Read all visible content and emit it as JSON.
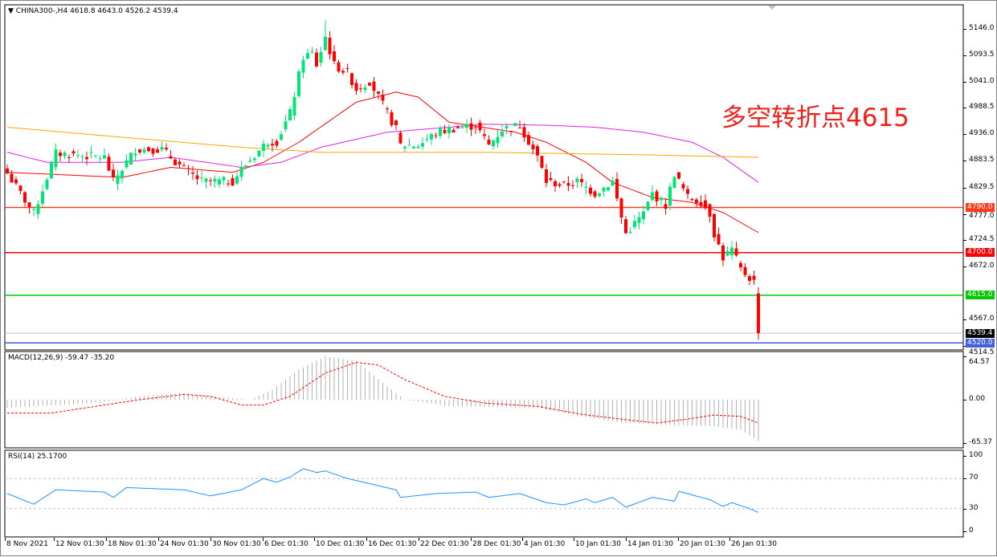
{
  "header": {
    "symbol": "CHINA300-,H4",
    "ohlc": "4618.8 4643.0 4526.2 4539.4"
  },
  "annotation": "多空转折点4615",
  "colors": {
    "bull": "#00e676",
    "bear": "#ff0000",
    "ma_fast": "#ff0000",
    "ma_mid": "#e020e0",
    "ma_slow": "#ffa500",
    "macd_hist": "#b0b0b0",
    "macd_signal": "#ff0000",
    "rsi": "#1e90ff"
  },
  "chart_data": [
    {
      "type": "candlestick",
      "pane": "price",
      "candle_count": 171,
      "price_range": [
        4514.5,
        5160
      ],
      "y_ticks": [
        "5146.0",
        "5093.5",
        "5041.0",
        "4988.5",
        "4936.0",
        "4883.5",
        "4829.5",
        "4777.0",
        "4724.5",
        "4672.0",
        "4567.0",
        "4514.5"
      ],
      "x_ticks": [
        "8 Nov 2021",
        "12 Nov 01:30",
        "18 Nov 01:30",
        "24 Nov 01:30",
        "30 Nov 01:30",
        "6 Dec 01:30",
        "10 Dec 01:30",
        "16 Dec 01:30",
        "22 Dec 01:30",
        "28 Dec 01:30",
        "4 Jan 01:30",
        "10 Jan 01:30",
        "14 Jan 01:30",
        "20 Jan 01:30",
        "26 Jan 01:30"
      ],
      "close_path": [
        [
          0,
          4858
        ],
        [
          6,
          4778
        ],
        [
          11,
          4898
        ],
        [
          22,
          4890
        ],
        [
          24,
          4842
        ],
        [
          29,
          4906
        ],
        [
          35,
          4906
        ],
        [
          40,
          4866
        ],
        [
          44,
          4842
        ],
        [
          51,
          4842
        ],
        [
          53,
          4866
        ],
        [
          59,
          4922
        ],
        [
          61,
          4922
        ],
        [
          64,
          4978
        ],
        [
          67,
          5090
        ],
        [
          69,
          5098
        ],
        [
          70,
          5074
        ],
        [
          72,
          5130
        ],
        [
          74,
          5074
        ],
        [
          77,
          5058
        ],
        [
          79,
          5026
        ],
        [
          82,
          5042
        ],
        [
          85,
          4994
        ],
        [
          88,
          4946
        ],
        [
          89,
          4914
        ],
        [
          93,
          4914
        ],
        [
          97,
          4938
        ],
        [
          100,
          4946
        ],
        [
          106,
          4954
        ],
        [
          109,
          4914
        ],
        [
          112,
          4946
        ],
        [
          116,
          4954
        ],
        [
          119,
          4906
        ],
        [
          120,
          4890
        ],
        [
          122,
          4842
        ],
        [
          126,
          4834
        ],
        [
          129,
          4842
        ],
        [
          133,
          4818
        ],
        [
          137,
          4842
        ],
        [
          139,
          4770
        ],
        [
          140,
          4738
        ],
        [
          144,
          4778
        ],
        [
          146,
          4818
        ],
        [
          149,
          4794
        ],
        [
          151,
          4858
        ],
        [
          154,
          4810
        ],
        [
          157,
          4802
        ],
        [
          159,
          4778
        ],
        [
          160,
          4738
        ],
        [
          162,
          4690
        ],
        [
          164,
          4706
        ],
        [
          166,
          4666
        ],
        [
          169,
          4642
        ],
        [
          170,
          4539.4
        ]
      ],
      "moving_averages": [
        {
          "color": "#ff0000",
          "points": [
            [
              0,
              4860
            ],
            [
              26,
              4850
            ],
            [
              37,
              4870
            ],
            [
              51,
              4860
            ],
            [
              58,
              4880
            ],
            [
              66,
              4920
            ],
            [
              79,
              5000
            ],
            [
              88,
              5020
            ],
            [
              93,
              5010
            ],
            [
              100,
              4960
            ],
            [
              115,
              4940
            ],
            [
              122,
              4920
            ],
            [
              131,
              4880
            ],
            [
              137,
              4840
            ],
            [
              146,
              4810
            ],
            [
              155,
              4800
            ],
            [
              162,
              4780
            ],
            [
              170,
              4740
            ]
          ]
        },
        {
          "color": "#e020e0",
          "points": [
            [
              0,
              4900
            ],
            [
              9,
              4880
            ],
            [
              26,
              4880
            ],
            [
              37,
              4890
            ],
            [
              53,
              4870
            ],
            [
              62,
              4880
            ],
            [
              71,
              4910
            ],
            [
              86,
              4940
            ],
            [
              100,
              4950
            ],
            [
              108,
              4956
            ],
            [
              122,
              4954
            ],
            [
              133,
              4950
            ],
            [
              144,
              4940
            ],
            [
              155,
              4920
            ],
            [
              162,
              4890
            ],
            [
              170,
              4840
            ]
          ]
        },
        {
          "color": "#ffa500",
          "points": [
            [
              0,
              4950
            ],
            [
              26,
              4930
            ],
            [
              53,
              4910
            ],
            [
              71,
              4900
            ],
            [
              108,
              4900
            ],
            [
              144,
              4895
            ],
            [
              170,
              4890
            ]
          ]
        }
      ],
      "levels": [
        {
          "price": 4790.0,
          "label": "4790.0",
          "color": "#ff3a1a"
        },
        {
          "price": 4700.0,
          "label": "4700.0",
          "color": "#ff0000"
        },
        {
          "price": 4615.0,
          "label": "4615.0",
          "color": "#00c800"
        },
        {
          "price": 4539.4,
          "label": "4539.4",
          "color": "#000000",
          "line": "#c0c0c0"
        },
        {
          "price": 4520.0,
          "label": "4520.0",
          "color": "#4060e0"
        }
      ]
    },
    {
      "type": "macd",
      "label": "MACD(12,26,9) -59.47 -35.20",
      "y_ticks": [
        "64.57",
        "0.00",
        "-65.37"
      ],
      "range": [
        -65.37,
        64.57
      ],
      "histogram_path": [
        [
          0,
          -12
        ],
        [
          20,
          -5
        ],
        [
          30,
          5
        ],
        [
          40,
          10
        ],
        [
          50,
          3
        ],
        [
          55,
          0
        ],
        [
          60,
          15
        ],
        [
          66,
          45
        ],
        [
          72,
          65
        ],
        [
          79,
          58
        ],
        [
          86,
          20
        ],
        [
          90,
          0
        ],
        [
          100,
          -10
        ],
        [
          120,
          -12
        ],
        [
          130,
          -25
        ],
        [
          140,
          -35
        ],
        [
          150,
          -38
        ],
        [
          160,
          -40
        ],
        [
          166,
          -45
        ],
        [
          170,
          -62
        ]
      ],
      "signal_path": [
        [
          0,
          -20
        ],
        [
          10,
          -20
        ],
        [
          20,
          -10
        ],
        [
          30,
          0
        ],
        [
          40,
          8
        ],
        [
          46,
          5
        ],
        [
          53,
          -8
        ],
        [
          58,
          -8
        ],
        [
          64,
          5
        ],
        [
          72,
          40
        ],
        [
          79,
          56
        ],
        [
          84,
          52
        ],
        [
          90,
          30
        ],
        [
          99,
          5
        ],
        [
          108,
          -5
        ],
        [
          120,
          -10
        ],
        [
          130,
          -22
        ],
        [
          140,
          -30
        ],
        [
          147,
          -35
        ],
        [
          153,
          -30
        ],
        [
          160,
          -23
        ],
        [
          166,
          -25
        ],
        [
          170,
          -35
        ]
      ]
    },
    {
      "type": "line",
      "label": "RSI(14) 25.1700",
      "y_ticks": [
        "100",
        "70",
        "30",
        "0"
      ],
      "range": [
        0,
        100
      ],
      "levels": [
        70,
        30
      ],
      "values_path": [
        [
          0,
          50
        ],
        [
          6,
          36
        ],
        [
          11,
          55
        ],
        [
          22,
          52
        ],
        [
          24,
          45
        ],
        [
          27,
          58
        ],
        [
          40,
          55
        ],
        [
          46,
          47
        ],
        [
          53,
          55
        ],
        [
          58,
          70
        ],
        [
          61,
          65
        ],
        [
          64,
          72
        ],
        [
          67,
          83
        ],
        [
          70,
          78
        ],
        [
          72,
          80
        ],
        [
          77,
          70
        ],
        [
          88,
          55
        ],
        [
          89,
          45
        ],
        [
          97,
          50
        ],
        [
          106,
          52
        ],
        [
          109,
          45
        ],
        [
          116,
          50
        ],
        [
          122,
          38
        ],
        [
          126,
          35
        ],
        [
          131,
          43
        ],
        [
          133,
          38
        ],
        [
          137,
          45
        ],
        [
          140,
          32
        ],
        [
          146,
          45
        ],
        [
          151,
          40
        ],
        [
          152,
          53
        ],
        [
          159,
          42
        ],
        [
          162,
          33
        ],
        [
          164,
          38
        ],
        [
          168,
          30
        ],
        [
          170,
          25.17
        ]
      ]
    }
  ]
}
